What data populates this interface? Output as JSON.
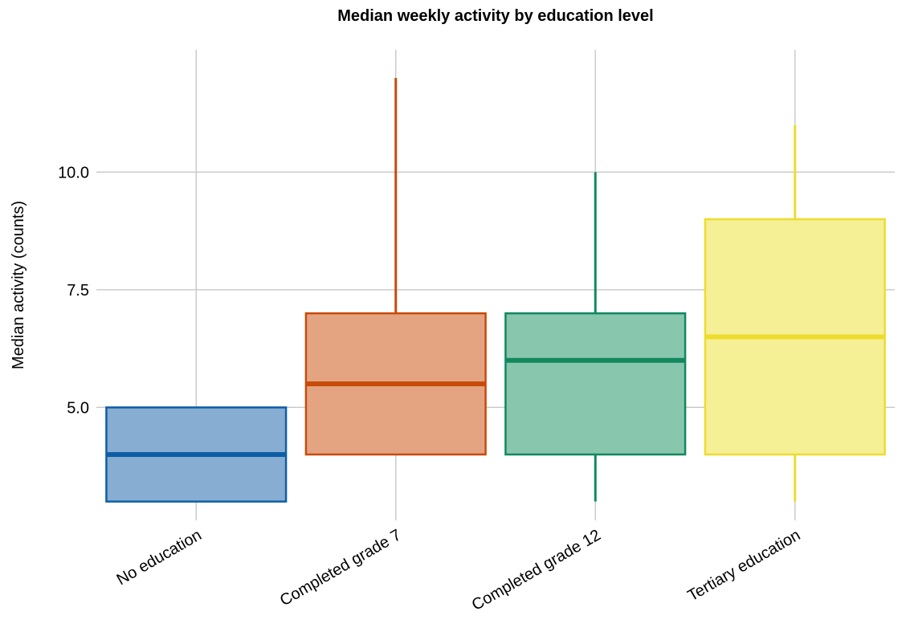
{
  "chart_data": {
    "type": "box",
    "title": "Median weekly activity by education level",
    "xlabel": "",
    "ylabel": "Median activity (counts)",
    "ylim": [
      2.6,
      12.6
    ],
    "yticks": [
      5.0,
      7.5,
      10.0
    ],
    "ytick_labels": [
      "5.0",
      "7.5",
      "10.0"
    ],
    "grid": true,
    "legend": "none",
    "categories": [
      "No education",
      "Completed grade 7",
      "Completed grade 12",
      "Tertiary education"
    ],
    "boxes": [
      {
        "category": "No education",
        "whisker_low": 3,
        "q1": 3,
        "median": 4,
        "q3": 5,
        "whisker_high": 5,
        "line_color": "#0e5ea6",
        "fill_color": "#87aed2"
      },
      {
        "category": "Completed grade 7",
        "whisker_low": 4,
        "q1": 4,
        "median": 5.5,
        "q3": 7,
        "whisker_high": 12,
        "line_color": "#c84b0a",
        "fill_color": "#e4a482"
      },
      {
        "category": "Completed grade 12",
        "whisker_low": 3,
        "q1": 4,
        "median": 6,
        "q3": 7,
        "whisker_high": 10,
        "line_color": "#12885f",
        "fill_color": "#88c6ae"
      },
      {
        "category": "Tertiary education",
        "whisker_low": 3,
        "q1": 4,
        "median": 6.5,
        "q3": 9,
        "whisker_high": 11,
        "line_color": "#eddc2e",
        "fill_color": "#f5ef96"
      }
    ]
  }
}
